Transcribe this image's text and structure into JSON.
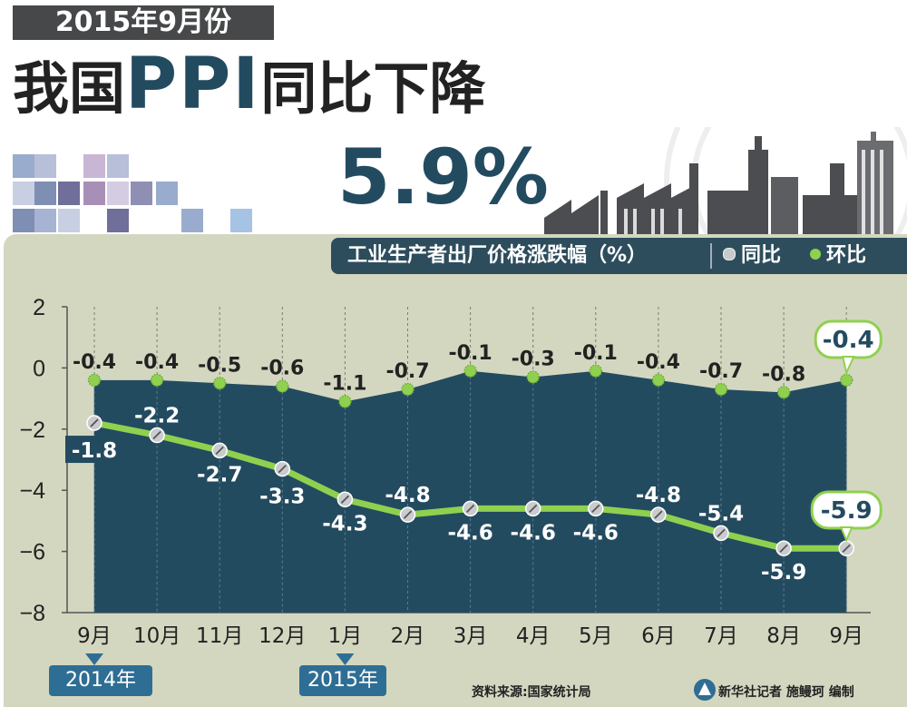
{
  "header": {
    "date_banner": "2015年9月份",
    "headline_pre": "我国",
    "headline_ppi": "PPI",
    "headline_post": "同比下降",
    "big_value": "5.9%"
  },
  "legend": {
    "title": "工业生产者出厂价格涨跌幅（%）",
    "yoy_label": "同比",
    "mom_label": "环比"
  },
  "years": {
    "y2014": "2014年",
    "y2015": "2015年"
  },
  "footer": {
    "source": "资料来源:国家统计局",
    "credit": "新华社记者 施鳗珂 编制"
  },
  "colors": {
    "dark_teal": "#234b60",
    "panel": "#d4d7c0",
    "green": "#8fd14f",
    "year_tag": "#2f6e94"
  },
  "chart_data": {
    "type": "line",
    "categories": [
      "9月",
      "10月",
      "11月",
      "12月",
      "1月",
      "2月",
      "3月",
      "4月",
      "5月",
      "6月",
      "7月",
      "8月",
      "9月"
    ],
    "yticks": [
      "2",
      "0",
      "−2",
      "−4",
      "−6",
      "−8"
    ],
    "ylim": [
      -8,
      2
    ],
    "series": [
      {
        "name": "同比",
        "values": [
          -1.8,
          -2.2,
          -2.7,
          -3.3,
          -4.3,
          -4.8,
          -4.6,
          -4.6,
          -4.6,
          -4.8,
          -5.4,
          -5.9,
          -5.9
        ]
      },
      {
        "name": "环比",
        "values": [
          -0.4,
          -0.4,
          -0.5,
          -0.6,
          -1.1,
          -0.7,
          -0.1,
          -0.3,
          -0.1,
          -0.4,
          -0.7,
          -0.8,
          -0.4
        ]
      }
    ],
    "yoy_labels": [
      "-1.8",
      "-2.2",
      "-2.7",
      "-3.3",
      "-4.3",
      "-4.8",
      "-4.6",
      "-4.6",
      "-4.6",
      "-4.8",
      "-5.4",
      "-5.9",
      "-5.9"
    ],
    "mom_labels": [
      "-0.4",
      "-0.4",
      "-0.5",
      "-0.6",
      "-1.1",
      "-0.7",
      "-0.1",
      "-0.3",
      "-0.1",
      "-0.4",
      "-0.7",
      "-0.8",
      "-0.4"
    ]
  }
}
